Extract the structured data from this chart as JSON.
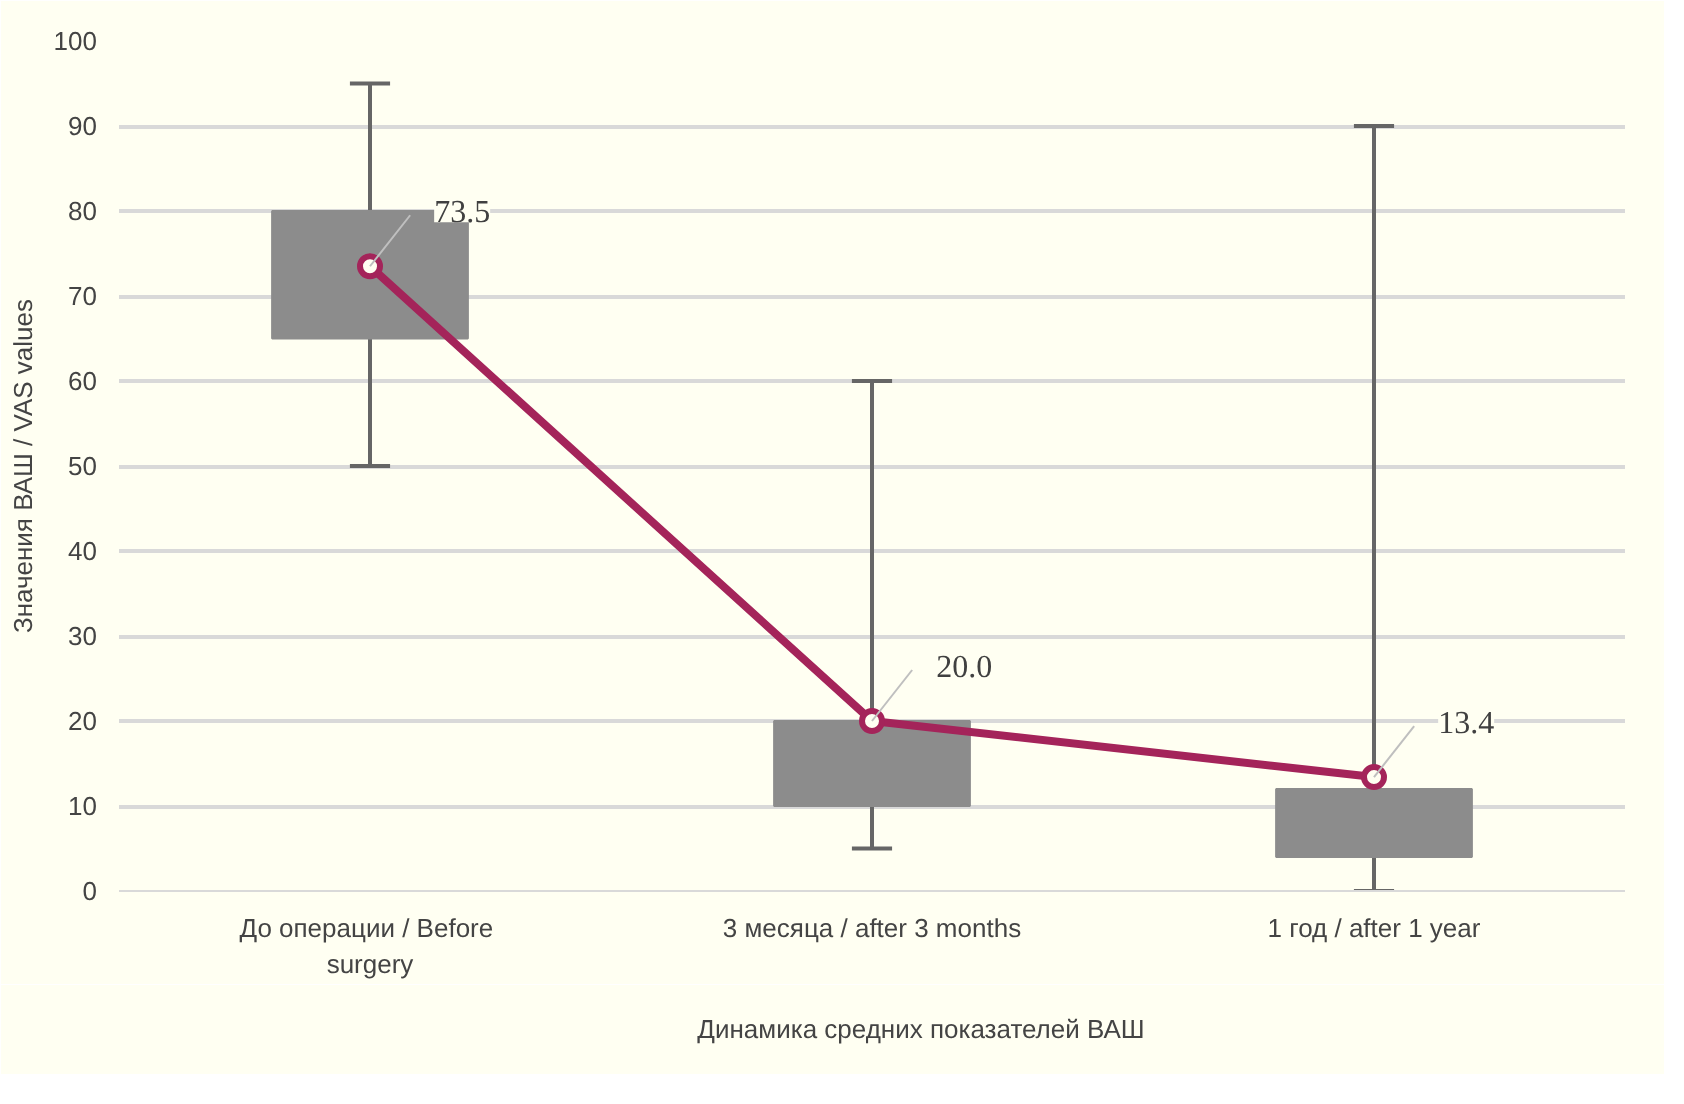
{
  "chart_data": {
    "type": "box",
    "ylabel": "Значения ВАШ / VAS values",
    "categories": [
      "До операции  / Before surgery",
      "3 месяца / after 3 months",
      "1 год / after 1 year"
    ],
    "boxes": [
      {
        "low": 50,
        "q1": 65,
        "q3": 80,
        "high": 95
      },
      {
        "low": 5,
        "q1": 10,
        "q3": 20,
        "high": 60
      },
      {
        "low": 0,
        "q1": 4,
        "q3": 12,
        "high": 90
      }
    ],
    "series": [
      {
        "type": "line",
        "name": "Динамика средних показателей ВАШ",
        "color": "#a4245a",
        "values": [
          73.5,
          20.0,
          13.4
        ],
        "marker": "circle",
        "data_labels": true,
        "value_labels": [
          "73.5",
          "20.0",
          "13.4"
        ]
      }
    ],
    "ylim": [
      0,
      100
    ],
    "yticks": [
      0,
      10,
      20,
      30,
      40,
      50,
      60,
      70,
      80,
      90,
      100
    ],
    "grid": "y",
    "legend": "bottom"
  }
}
